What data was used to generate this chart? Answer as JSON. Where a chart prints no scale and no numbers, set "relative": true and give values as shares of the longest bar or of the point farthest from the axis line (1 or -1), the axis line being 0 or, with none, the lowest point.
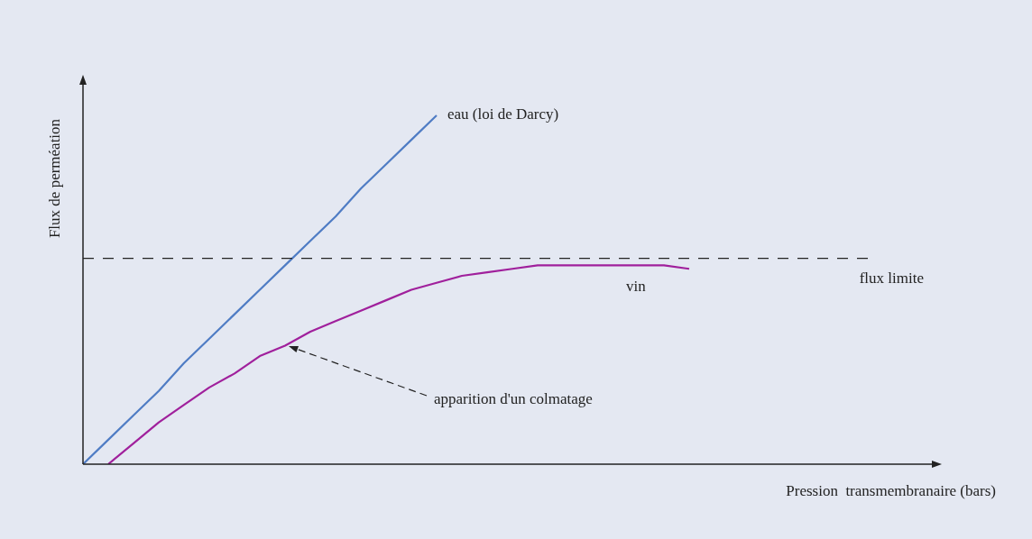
{
  "chart_data": {
    "type": "line",
    "relative": true,
    "xlabel": "Pression  transmembranaire (bars)",
    "ylabel": "Flux de perméation",
    "line_style": "solid",
    "categories": [
      null,
      null,
      null,
      null,
      null,
      null,
      null,
      null,
      null,
      null,
      null,
      null,
      null,
      null,
      null,
      null,
      null,
      null,
      null,
      null,
      null,
      null,
      null,
      null,
      null,
      null,
      null,
      null,
      null,
      null,
      null,
      null,
      null,
      null,
      null
    ],
    "series": [
      {
        "name": "eau (loi de Darcy)",
        "color": "#4f7cc4",
        "values": [
          0,
          0.07,
          0.14,
          0.21,
          0.29,
          0.36,
          0.43,
          0.5,
          0.57,
          0.64,
          0.71,
          0.79,
          0.86,
          0.93,
          1,
          null,
          null,
          null,
          null,
          null,
          null,
          null,
          null,
          null,
          null,
          null,
          null,
          null,
          null,
          null,
          null,
          null,
          null,
          null,
          null
        ]
      },
      {
        "name": "vin",
        "color": "#a0209c",
        "values": [
          null,
          0,
          0.06,
          0.12,
          0.17,
          0.22,
          0.26,
          0.31,
          0.34,
          0.38,
          0.41,
          0.44,
          0.47,
          0.5,
          0.52,
          0.54,
          0.55,
          0.56,
          0.57,
          0.57,
          0.57,
          0.57,
          0.57,
          0.57,
          0.56,
          null,
          null,
          null,
          null,
          null,
          null,
          null,
          null,
          null,
          null
        ]
      }
    ],
    "ref_lines": [
      {
        "axis": "y",
        "value": 0.59,
        "label": "flux limite",
        "color": "#222222",
        "line_style": "dashed"
      }
    ],
    "annotations": [
      "apparition d'un colmatage"
    ]
  }
}
